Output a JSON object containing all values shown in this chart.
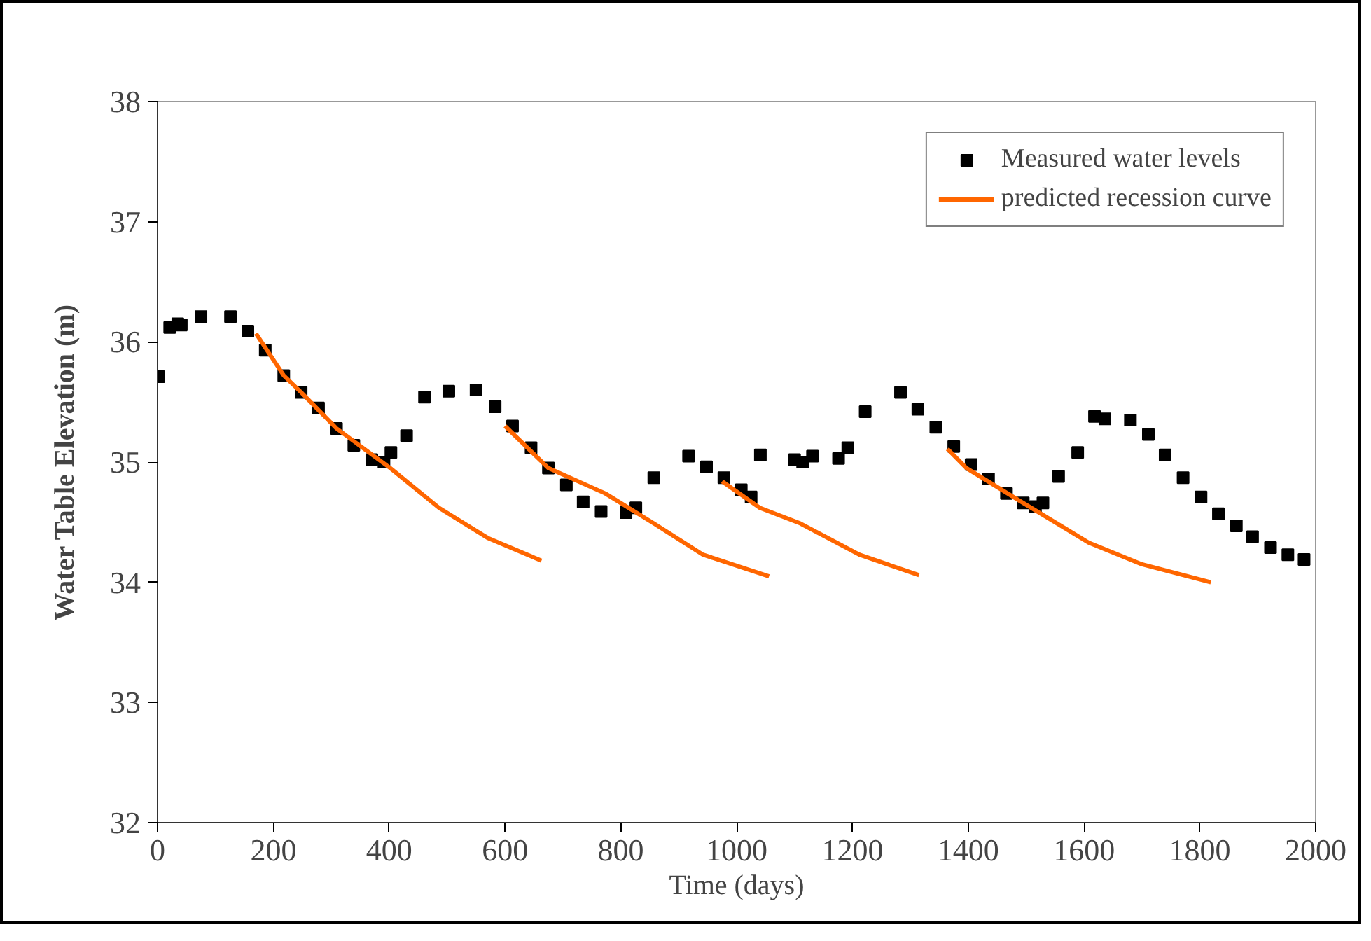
{
  "chart_data": {
    "type": "scatter",
    "xlabel": "Time (days)",
    "ylabel": "Water Table Elevation (m)",
    "xlim": [
      0,
      2000
    ],
    "xticks": [
      0,
      200,
      400,
      600,
      800,
      1000,
      1200,
      1400,
      1600,
      1800,
      2000
    ],
    "ylim": [
      32,
      38
    ],
    "yticks": [
      32,
      33,
      34,
      35,
      36,
      37,
      38
    ],
    "grid": false,
    "legend": "top right",
    "series": [
      {
        "name": "Measured water levels",
        "type": "scatter",
        "marker": "square",
        "color": "#000000",
        "x": [
          2,
          21,
          35,
          41,
          75,
          126,
          156,
          186,
          218,
          248,
          278,
          309,
          339,
          370,
          391,
          403,
          430,
          461,
          503,
          550,
          583,
          613,
          645,
          675,
          706,
          735,
          766,
          809,
          826,
          857,
          917,
          948,
          978,
          1008,
          1025,
          1041,
          1100,
          1114,
          1131,
          1176,
          1192,
          1222,
          1283,
          1313,
          1344,
          1375,
          1405,
          1435,
          1466,
          1495,
          1516,
          1529,
          1556,
          1589,
          1618,
          1636,
          1680,
          1711,
          1740,
          1771,
          1802,
          1832,
          1863,
          1891,
          1922,
          1952,
          1980
        ],
        "values": [
          35.71,
          36.12,
          36.15,
          36.14,
          36.21,
          36.21,
          36.09,
          35.93,
          35.72,
          35.58,
          35.45,
          35.28,
          35.14,
          35.02,
          35.0,
          35.08,
          35.22,
          35.54,
          35.59,
          35.6,
          35.46,
          35.3,
          35.12,
          34.95,
          34.81,
          34.67,
          34.59,
          34.58,
          34.62,
          34.87,
          35.05,
          34.96,
          34.87,
          34.77,
          34.71,
          35.06,
          35.02,
          35.0,
          35.05,
          35.03,
          35.12,
          35.42,
          35.58,
          35.44,
          35.29,
          35.13,
          34.98,
          34.86,
          34.74,
          34.66,
          34.63,
          34.66,
          34.88,
          35.08,
          35.38,
          35.36,
          35.35,
          35.23,
          35.06,
          34.87,
          34.71,
          34.57,
          34.47,
          34.38,
          34.29,
          34.23,
          34.19
        ]
      },
      {
        "name": "predicted recession curve",
        "type": "line",
        "line_style": "solid",
        "color": "#ff6600",
        "x": [
          170,
          218,
          248,
          309,
          402,
          486,
          570,
          663,
          null,
          600,
          675,
          773,
          857,
          942,
          1056,
          null,
          975,
          1040,
          1110,
          1212,
          1315,
          null,
          1364,
          1397,
          1495,
          1608,
          1700,
          1819
        ],
        "values": [
          36.07,
          35.72,
          35.58,
          35.28,
          34.95,
          34.62,
          34.37,
          34.18,
          null,
          35.3,
          34.95,
          34.74,
          34.49,
          34.23,
          34.05,
          null,
          34.84,
          34.62,
          34.49,
          34.23,
          34.06,
          null,
          35.11,
          34.95,
          34.66,
          34.33,
          34.15,
          34.0
        ]
      }
    ]
  }
}
